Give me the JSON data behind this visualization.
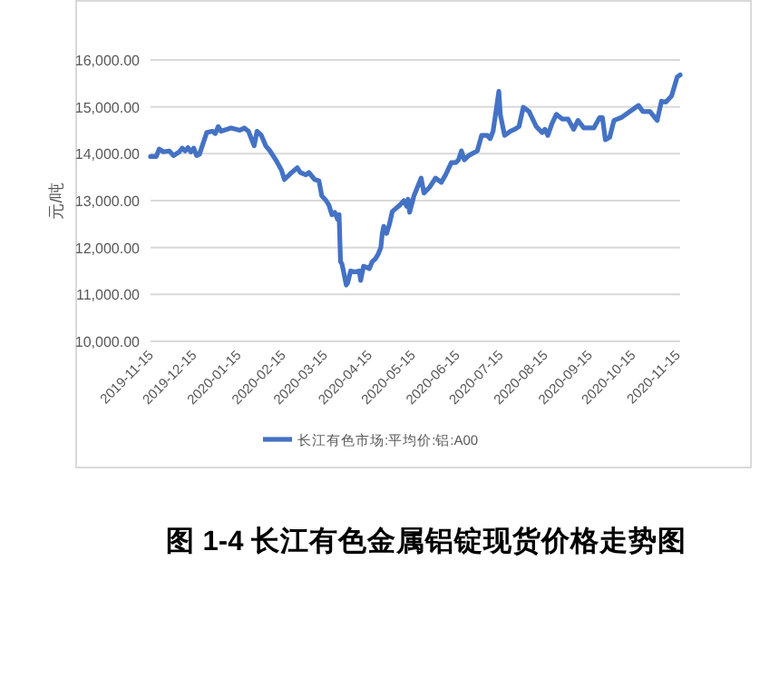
{
  "chart_data": {
    "type": "line",
    "title": "图 1-4  长江有色金属铝锭现货价格走势图",
    "ylabel": "元/吨",
    "x": [
      "2019-11-15",
      "2019-11-19",
      "2019-11-21",
      "2019-11-24",
      "2019-11-28",
      "2019-12-01",
      "2019-12-05",
      "2019-12-07",
      "2019-12-09",
      "2019-12-11",
      "2019-12-13",
      "2019-12-15",
      "2019-12-17",
      "2019-12-19",
      "2019-12-24",
      "2019-12-28",
      "2019-12-30",
      "2020-01-01",
      "2020-01-03",
      "2020-01-10",
      "2020-01-16",
      "2020-01-19",
      "2020-01-22",
      "2020-01-26",
      "2020-01-28",
      "2020-01-31",
      "2020-02-03",
      "2020-02-06",
      "2020-02-10",
      "2020-02-14",
      "2020-02-16",
      "2020-02-20",
      "2020-02-25",
      "2020-02-27",
      "2020-03-02",
      "2020-03-04",
      "2020-03-08",
      "2020-03-11",
      "2020-03-13",
      "2020-03-16",
      "2020-03-18",
      "2020-03-20",
      "2020-03-22",
      "2020-03-24",
      "2020-03-25",
      "2020-03-26",
      "2020-03-27",
      "2020-03-28",
      "2020-03-30",
      "2020-03-31",
      "2020-04-02",
      "2020-04-05",
      "2020-04-08",
      "2020-04-09",
      "2020-04-11",
      "2020-04-13",
      "2020-04-15",
      "2020-04-17",
      "2020-04-19",
      "2020-04-21",
      "2020-04-23",
      "2020-04-24",
      "2020-04-25",
      "2020-04-27",
      "2020-04-29",
      "2020-05-01",
      "2020-05-06",
      "2020-05-09",
      "2020-05-11",
      "2020-05-12",
      "2020-05-13",
      "2020-05-16",
      "2020-05-21",
      "2020-05-23",
      "2020-05-27",
      "2020-05-31",
      "2020-06-04",
      "2020-06-07",
      "2020-06-11",
      "2020-06-14",
      "2020-06-16",
      "2020-06-18",
      "2020-06-20",
      "2020-06-23",
      "2020-06-29",
      "2020-07-02",
      "2020-07-06",
      "2020-07-08",
      "2020-07-10",
      "2020-07-12",
      "2020-07-14",
      "2020-07-15",
      "2020-07-18",
      "2020-07-22",
      "2020-07-25",
      "2020-07-28",
      "2020-07-31",
      "2020-08-04",
      "2020-08-09",
      "2020-08-13",
      "2020-08-15",
      "2020-08-17",
      "2020-08-20",
      "2020-08-23",
      "2020-08-27",
      "2020-08-31",
      "2020-09-04",
      "2020-09-07",
      "2020-09-11",
      "2020-09-18",
      "2020-09-22",
      "2020-09-24",
      "2020-09-26",
      "2020-09-29",
      "2020-10-02",
      "2020-10-07",
      "2020-10-13",
      "2020-10-19",
      "2020-10-22",
      "2020-10-27",
      "2020-11-01",
      "2020-11-04",
      "2020-11-07",
      "2020-11-11",
      "2020-11-15",
      "2020-11-17"
    ],
    "series": [
      {
        "name": "长江有色市场:平均价:铝:A00",
        "color": "#4472c4",
        "values": [
          13940,
          13940,
          14100,
          14040,
          14060,
          13960,
          14040,
          14120,
          14060,
          14130,
          14040,
          14120,
          13960,
          13990,
          14450,
          14480,
          14430,
          14580,
          14480,
          14550,
          14500,
          14550,
          14480,
          14170,
          14480,
          14390,
          14170,
          14060,
          13870,
          13650,
          13450,
          13570,
          13700,
          13600,
          13550,
          13600,
          13450,
          13420,
          13100,
          13000,
          12900,
          12700,
          12750,
          12600,
          12700,
          11700,
          11650,
          11500,
          11200,
          11250,
          11500,
          11480,
          11500,
          11300,
          11600,
          11580,
          11550,
          11700,
          11750,
          11850,
          12000,
          12300,
          12450,
          12300,
          12500,
          12770,
          12900,
          13000,
          12880,
          13030,
          12750,
          13100,
          13480,
          13160,
          13290,
          13480,
          13390,
          13550,
          13810,
          13810,
          13870,
          14060,
          13870,
          13960,
          14060,
          14390,
          14390,
          14320,
          14480,
          14900,
          15330,
          14840,
          14390,
          14480,
          14520,
          14580,
          14990,
          14900,
          14580,
          14450,
          14520,
          14390,
          14650,
          14840,
          14740,
          14740,
          14520,
          14710,
          14550,
          14550,
          14770,
          14770,
          14300,
          14350,
          14710,
          14770,
          14900,
          15030,
          14900,
          14900,
          14710,
          15120,
          15100,
          15230,
          15640,
          15680
        ]
      }
    ],
    "xlim": [
      "2019-11-15",
      "2020-11-17"
    ],
    "xticks": [
      "2019-11-15",
      "2019-12-15",
      "2020-01-15",
      "2020-02-15",
      "2020-03-15",
      "2020-04-15",
      "2020-05-15",
      "2020-06-15",
      "2020-07-15",
      "2020-08-15",
      "2020-09-15",
      "2020-10-15",
      "2020-11-15"
    ],
    "ylim": [
      10000,
      16000
    ],
    "yticks": [
      {
        "value": 10000,
        "label": "10,000.00"
      },
      {
        "value": 11000,
        "label": "11,000.00"
      },
      {
        "value": 12000,
        "label": "12,000.00"
      },
      {
        "value": 13000,
        "label": "13,000.00"
      },
      {
        "value": 14000,
        "label": "14,000.00"
      },
      {
        "value": 15000,
        "label": "15,000.00"
      },
      {
        "value": 16000,
        "label": "16,000.00"
      }
    ],
    "grid": "y",
    "legend": "bottom",
    "line_style": "solid",
    "marker": "none"
  }
}
